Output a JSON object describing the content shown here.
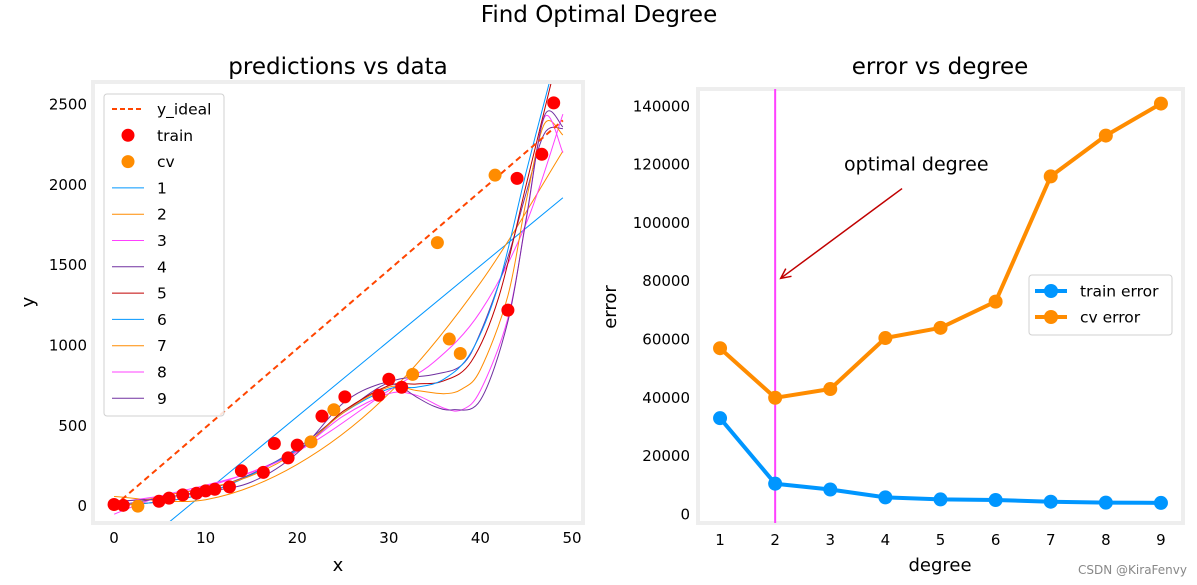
{
  "figure": {
    "suptitle": "Find Optimal Degree",
    "watermark": "CSDN @KiraFenvy"
  },
  "chart_data": [
    {
      "type": "scatter",
      "title": "predictions vs data",
      "xlabel": "x",
      "ylabel": "y",
      "xlim": [
        -2.3,
        51.2
      ],
      "ylim": [
        -105,
        2640
      ],
      "xticks": [
        0,
        10,
        20,
        30,
        40,
        50
      ],
      "yticks": [
        0,
        500,
        1000,
        1500,
        2000,
        2500
      ],
      "grid": false,
      "legend_position": "upper-left",
      "legend": [
        "y_ideal",
        "train",
        "cv",
        "1",
        "2",
        "3",
        "4",
        "5",
        "6",
        "7",
        "8",
        "9"
      ],
      "colors": {
        "y_ideal": "#ff4500",
        "train": "#ff0000",
        "cv": "#ff8c00",
        "degree_lines": [
          "#0096ff",
          "#ff8c00",
          "#ff40ff",
          "#7030a0",
          "#c00000",
          "#0096ff",
          "#ff8c00",
          "#ff40ff",
          "#7030a0"
        ]
      },
      "train": {
        "x": [
          0,
          1.0,
          4.9,
          6.0,
          7.5,
          9.0,
          10.0,
          11.0,
          12.6,
          13.9,
          16.3,
          17.5,
          19.0,
          20.0,
          22.7,
          25.2,
          28.9,
          30.0,
          31.4,
          43.0,
          44.0,
          46.7,
          48.0
        ],
        "y": [
          10,
          5,
          30,
          50,
          70,
          80,
          95,
          105,
          120,
          220,
          210,
          390,
          300,
          380,
          560,
          680,
          690,
          790,
          740,
          1220,
          2040,
          2190,
          2510
        ]
      },
      "cv": {
        "x": [
          2.6,
          21.5,
          24.0,
          32.6,
          35.3,
          36.6,
          37.8,
          41.6
        ],
        "y": [
          0,
          400,
          600,
          820,
          1640,
          1040,
          950,
          2060
        ]
      },
      "y_ideal": {
        "x": [
          0,
          49
        ],
        "y": [
          0,
          2401
        ]
      },
      "curves": [
        {
          "name": "1",
          "x": [
            6,
            49
          ],
          "y": [
            -100,
            1920
          ]
        },
        {
          "name": "2",
          "x": [
            0,
            10,
            20,
            30,
            40,
            49
          ],
          "y": [
            60,
            40,
            260,
            700,
            1390,
            2210
          ]
        },
        {
          "name": "3",
          "x": [
            0,
            10,
            20,
            30,
            35,
            40,
            45,
            49
          ],
          "y": [
            20,
            120,
            340,
            720,
            900,
            1210,
            1760,
            2440
          ]
        },
        {
          "name": "4",
          "x": [
            0,
            5,
            10,
            15,
            20,
            25,
            30,
            35,
            38,
            40,
            43,
            45,
            47,
            49
          ],
          "y": [
            30,
            50,
            100,
            200,
            360,
            580,
            770,
            820,
            880,
            1080,
            1550,
            1950,
            2320,
            2350
          ]
        },
        {
          "name": "5",
          "x": [
            0,
            10,
            20,
            25,
            30,
            33,
            36,
            39,
            42,
            45,
            48
          ],
          "y": [
            0,
            80,
            350,
            590,
            750,
            760,
            780,
            900,
            1300,
            2000,
            2700
          ]
        },
        {
          "name": "6",
          "x": [
            0,
            10,
            20,
            25,
            30,
            33,
            36,
            39,
            42,
            45,
            48
          ],
          "y": [
            0,
            80,
            350,
            580,
            730,
            740,
            790,
            960,
            1380,
            2080,
            2740
          ]
        },
        {
          "name": "7",
          "x": [
            0,
            5,
            10,
            15,
            20,
            25,
            30,
            33,
            36,
            38,
            40,
            43,
            45,
            47,
            49
          ],
          "y": [
            -20,
            60,
            110,
            190,
            340,
            580,
            740,
            720,
            700,
            730,
            850,
            1310,
            1900,
            2380,
            2310
          ]
        },
        {
          "name": "8",
          "x": [
            0,
            5,
            10,
            15,
            20,
            25,
            30,
            33,
            36,
            38,
            40,
            43,
            45,
            47,
            49
          ],
          "y": [
            -50,
            60,
            130,
            210,
            340,
            560,
            700,
            690,
            610,
            600,
            720,
            1170,
            1780,
            2420,
            2200
          ]
        },
        {
          "name": "9",
          "x": [
            0,
            5,
            10,
            15,
            20,
            25,
            29,
            31,
            33,
            35,
            37,
            40,
            43,
            45,
            47,
            49
          ],
          "y": [
            0,
            50,
            90,
            150,
            330,
            640,
            760,
            750,
            680,
            620,
            600,
            660,
            1150,
            1790,
            2430,
            2360
          ]
        }
      ]
    },
    {
      "type": "line",
      "title": "error vs degree",
      "xlabel": "degree",
      "ylabel": "error",
      "xlim": [
        0.6,
        9.4
      ],
      "ylim": [
        -3000,
        146000
      ],
      "xticks": [
        1,
        2,
        3,
        4,
        5,
        6,
        7,
        8,
        9
      ],
      "yticks": [
        0,
        20000,
        40000,
        60000,
        80000,
        100000,
        120000,
        140000
      ],
      "grid": false,
      "legend_position": "center-right",
      "x": [
        1,
        2,
        3,
        4,
        5,
        6,
        7,
        8,
        9
      ],
      "series": [
        {
          "name": "train error",
          "color": "#0096ff",
          "values": [
            33000,
            10500,
            8500,
            5800,
            5100,
            4900,
            4300,
            4000,
            3900
          ]
        },
        {
          "name": "cv error",
          "color": "#ff8c00",
          "values": [
            57000,
            40000,
            43000,
            60500,
            64000,
            73000,
            116000,
            130000,
            141000
          ]
        }
      ],
      "vline": {
        "x": 2,
        "color": "#ff40ff"
      },
      "annotation": {
        "text": "optimal degree",
        "xy": [
          2.1,
          81000
        ],
        "xytext": [
          3.25,
          118000
        ],
        "arrow_color": "#c00000"
      }
    }
  ]
}
